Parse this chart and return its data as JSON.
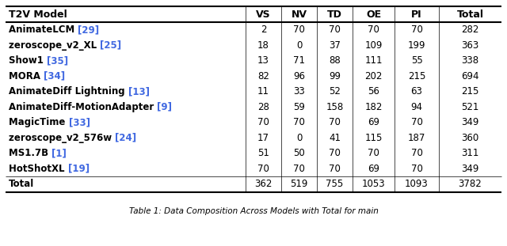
{
  "columns": [
    "T2V Model",
    "VS",
    "NV",
    "TD",
    "OE",
    "PI",
    "Total"
  ],
  "rows": [
    {
      "name": "AnimateLCM",
      "ref": "[29]",
      "vals": [
        "2",
        "70",
        "70",
        "70",
        "70",
        "282"
      ]
    },
    {
      "name": "zeroscope_v2_XL",
      "ref": "[25]",
      "vals": [
        "18",
        "0",
        "37",
        "109",
        "199",
        "363"
      ]
    },
    {
      "name": "Show1",
      "ref": "[35]",
      "vals": [
        "13",
        "71",
        "88",
        "111",
        "55",
        "338"
      ]
    },
    {
      "name": "MORA",
      "ref": "[34]",
      "vals": [
        "82",
        "96",
        "99",
        "202",
        "215",
        "694"
      ]
    },
    {
      "name": "AnimateDiff Lightning",
      "ref": "[13]",
      "vals": [
        "11",
        "33",
        "52",
        "56",
        "63",
        "215"
      ]
    },
    {
      "name": "AnimateDiff-MotionAdapter",
      "ref": "[9]",
      "vals": [
        "28",
        "59",
        "158",
        "182",
        "94",
        "521"
      ]
    },
    {
      "name": "MagicTime",
      "ref": "[33]",
      "vals": [
        "70",
        "70",
        "70",
        "69",
        "70",
        "349"
      ]
    },
    {
      "name": "zeroscope_v2_576w",
      "ref": "[24]",
      "vals": [
        "17",
        "0",
        "41",
        "115",
        "187",
        "360"
      ]
    },
    {
      "name": "MS1.7B",
      "ref": "[1]",
      "vals": [
        "51",
        "50",
        "70",
        "70",
        "70",
        "311"
      ]
    },
    {
      "name": "HotShotXL",
      "ref": "[19]",
      "vals": [
        "70",
        "70",
        "70",
        "69",
        "70",
        "349"
      ]
    }
  ],
  "total_vals": [
    "362",
    "519",
    "755",
    "1053",
    "1093",
    "3782"
  ],
  "caption": "Table 1: Data Composition Across Models with Total for main",
  "ref_color": "#4169E1",
  "text_color": "#000000",
  "bg_color": "#ffffff",
  "figsize": [
    6.4,
    3.11
  ],
  "dpi": 100,
  "font_size": 8.5,
  "header_font_size": 9.0,
  "caption_font_size": 7.5
}
